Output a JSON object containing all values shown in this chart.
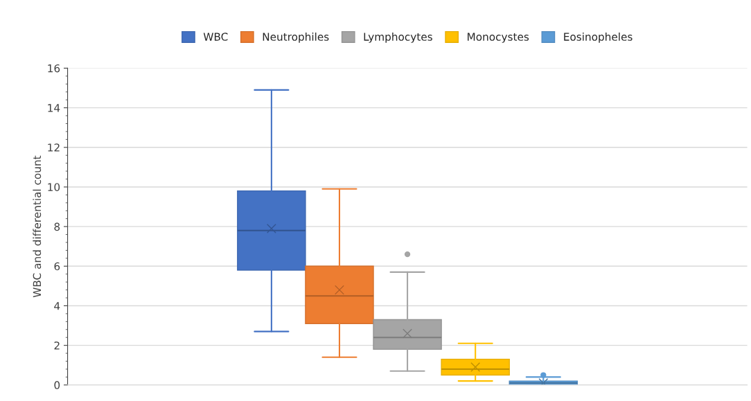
{
  "chart_data": {
    "type": "box",
    "ylabel": "WBC and differential count",
    "categories": [
      null
    ],
    "series": [
      {
        "name": "WBC",
        "color": "#4472c4",
        "boxes": [
          {
            "low": 2.7,
            "q1": 5.8,
            "median": 7.8,
            "q3": 9.8,
            "high": 14.9,
            "mean": 7.9
          }
        ]
      },
      {
        "name": "Neutrophiles",
        "color": "#ed7d31",
        "boxes": [
          {
            "low": 1.4,
            "q1": 3.1,
            "median": 4.5,
            "q3": 6.0,
            "high": 9.9,
            "mean": 4.8
          }
        ]
      },
      {
        "name": "Lymphocytes",
        "color": "#a5a5a5",
        "boxes": [
          {
            "low": 0.7,
            "q1": 1.8,
            "median": 2.4,
            "q3": 3.3,
            "high": 5.7,
            "mean": 2.6,
            "outliers": [
              6.6
            ]
          }
        ]
      },
      {
        "name": "Monocystes",
        "color": "#ffc000",
        "boxes": [
          {
            "low": 0.2,
            "q1": 0.5,
            "median": 0.8,
            "q3": 1.3,
            "high": 2.1,
            "mean": 0.9
          }
        ]
      },
      {
        "name": "Eosinopheles",
        "color": "#5b9bd5",
        "boxes": [
          {
            "low": 0.0,
            "q1": 0.0,
            "median": 0.1,
            "q3": 0.2,
            "high": 0.4,
            "mean": 0.1,
            "outliers": [
              0.5
            ]
          }
        ]
      }
    ],
    "ylim": [
      0,
      16
    ],
    "yticks": [
      0,
      2,
      4,
      6,
      8,
      10,
      12,
      14,
      16
    ],
    "grid": "y",
    "legend": "top",
    "tick_labels": "y"
  }
}
